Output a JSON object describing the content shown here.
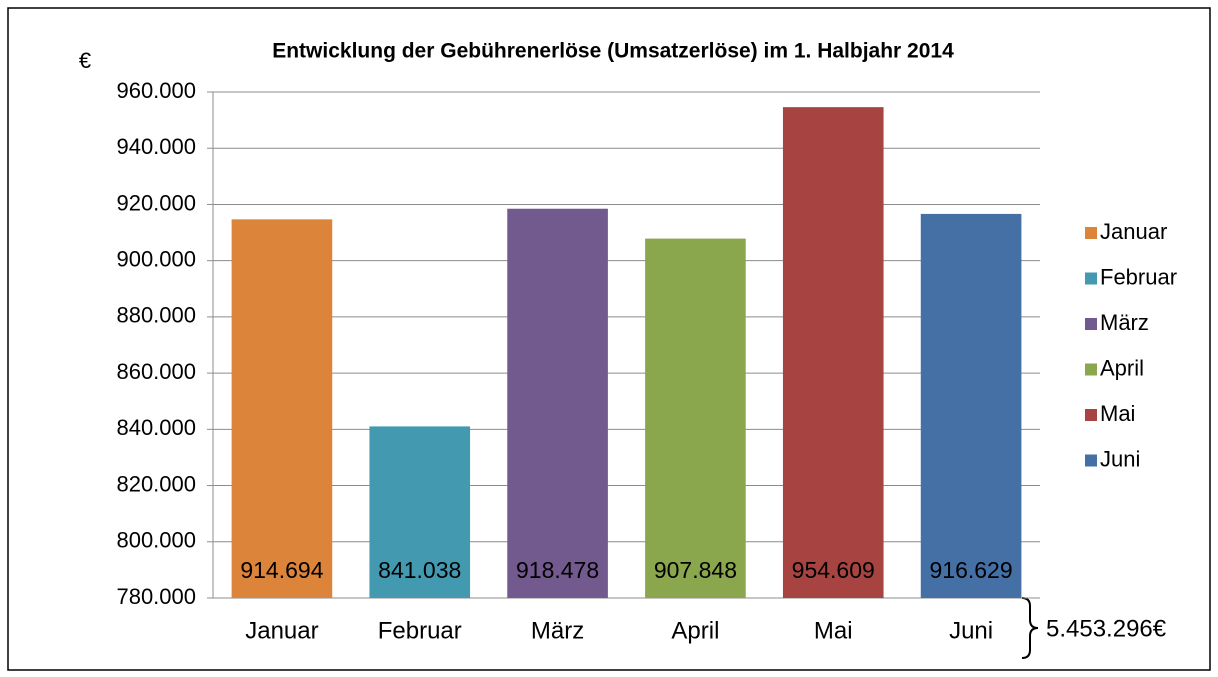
{
  "chart_data": {
    "type": "bar",
    "title": "Entwicklung der Gebührenerlöse (Umsatzerlöse) im 1. Halbjahr 2014",
    "y_axis_label": "€",
    "categories": [
      "Januar",
      "Februar",
      "März",
      "April",
      "Mai",
      "Juni"
    ],
    "values": [
      914694,
      841038,
      918478,
      907848,
      954609,
      916629
    ],
    "value_labels": [
      "914.694",
      "841.038",
      "918.478",
      "907.848",
      "954.609",
      "916.629"
    ],
    "colors": [
      "#dd843b",
      "#4299b0",
      "#725a8e",
      "#8aa74d",
      "#a74442",
      "#4470a5"
    ],
    "ylim": [
      780000,
      960000
    ],
    "yticks": [
      {
        "value": 780000,
        "label": "780.000"
      },
      {
        "value": 800000,
        "label": "800.000"
      },
      {
        "value": 820000,
        "label": "820.000"
      },
      {
        "value": 840000,
        "label": "840.000"
      },
      {
        "value": 860000,
        "label": "860.000"
      },
      {
        "value": 880000,
        "label": "880.000"
      },
      {
        "value": 900000,
        "label": "900.000"
      },
      {
        "value": 920000,
        "label": "920.000"
      },
      {
        "value": 940000,
        "label": "940.000"
      },
      {
        "value": 960000,
        "label": "960.000"
      }
    ],
    "grid": true,
    "legend": "right",
    "annotation": "5.453.296€"
  }
}
